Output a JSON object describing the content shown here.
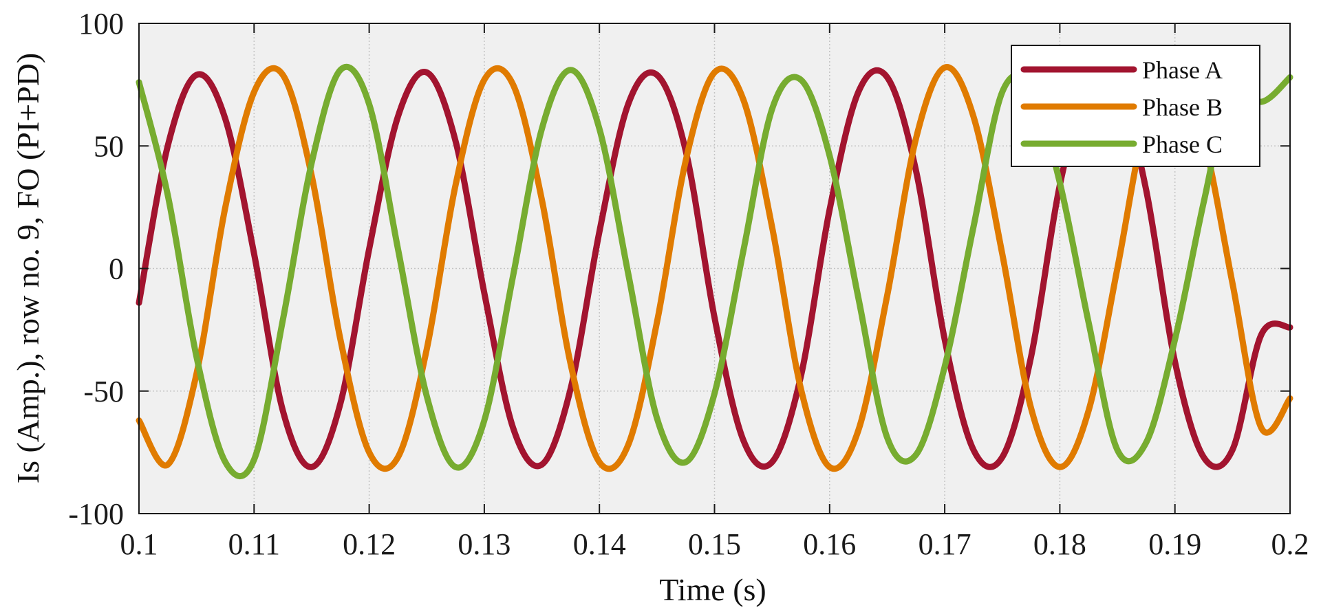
{
  "chart_data": {
    "type": "line",
    "title": "",
    "xlabel": "Time (s)",
    "ylabel": "Is (Amp.), row no. 9, FO (PI+PD)",
    "xlim": [
      0.1,
      0.2
    ],
    "ylim": [
      -100,
      100
    ],
    "xticks": [
      0.1,
      0.11,
      0.12,
      0.13,
      0.14,
      0.15,
      0.16,
      0.17,
      0.18,
      0.19,
      0.2
    ],
    "xtick_labels": [
      "0.1",
      "0.11",
      "0.12",
      "0.13",
      "0.14",
      "0.15",
      "0.16",
      "0.17",
      "0.18",
      "0.19",
      "0.2"
    ],
    "yticks": [
      -100,
      -50,
      0,
      50,
      100
    ],
    "ytick_labels": [
      "-100",
      "-50",
      "0",
      "50",
      "100"
    ],
    "grid": true,
    "plot_background": "#f0f0f0",
    "legend_position": "top-right",
    "x": [
      0.1,
      0.1025,
      0.105,
      0.1075,
      0.11,
      0.1125,
      0.115,
      0.1175,
      0.12,
      0.1225,
      0.125,
      0.1275,
      0.13,
      0.1325,
      0.135,
      0.1375,
      0.14,
      0.1425,
      0.145,
      0.1475,
      0.15,
      0.1525,
      0.155,
      0.1575,
      0.16,
      0.1625,
      0.165,
      0.1675,
      0.17,
      0.1725,
      0.175,
      0.1775,
      0.18,
      0.1825,
      0.185,
      0.1875,
      0.19,
      0.1925,
      0.195,
      0.1975,
      0.2
    ],
    "series": [
      {
        "name": "Phase A",
        "color": "#a2142f",
        "values": [
          -14,
          50,
          79,
          61,
          6,
          -58,
          -81,
          -55,
          8,
          62,
          80,
          52,
          -10,
          -65,
          -80,
          -49,
          15,
          67,
          79,
          48,
          -20,
          -70,
          -79,
          -44,
          24,
          72,
          78,
          40,
          -29,
          -74,
          -77,
          -36,
          34,
          75,
          76,
          32,
          -38,
          -77,
          -74,
          -27,
          -24
        ]
      },
      {
        "name": "Phase B",
        "color": "#e07b00",
        "values": [
          -62,
          -80,
          -43,
          25,
          72,
          79,
          38,
          -29,
          -75,
          -77,
          -33,
          34,
          77,
          75,
          28,
          -39,
          -79,
          -72,
          -22,
          44,
          80,
          69,
          17,
          -49,
          -81,
          -66,
          -11,
          53,
          82,
          62,
          6,
          -57,
          -81,
          -58,
          0,
          61,
          81,
          53,
          -6,
          -65,
          -53
        ]
      },
      {
        "name": "Phase C",
        "color": "#77ac30",
        "values": [
          76,
          30,
          -36,
          -79,
          -78,
          -21,
          43,
          81,
          67,
          8,
          -52,
          -81,
          -62,
          -3,
          57,
          81,
          57,
          -2,
          -61,
          -79,
          -51,
          7,
          65,
          77,
          46,
          -12,
          -69,
          -76,
          -40,
          17,
          72,
          74,
          35,
          -22,
          -74,
          -71,
          -29,
          27,
          76,
          68,
          78
        ]
      }
    ]
  }
}
